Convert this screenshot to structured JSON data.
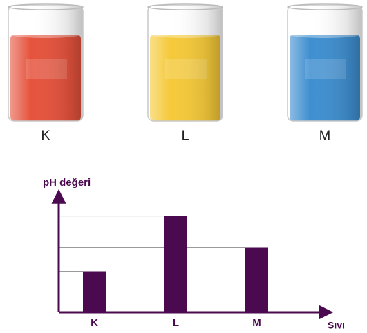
{
  "beakers": [
    {
      "label": "K",
      "color": "#e5533d"
    },
    {
      "label": "L",
      "color": "#f5c93a"
    },
    {
      "label": "M",
      "color": "#3f8fd0"
    }
  ],
  "chart_data": {
    "type": "bar",
    "y_label": "pH değeri",
    "x_label": "Sıvı",
    "categories": [
      "K",
      "L",
      "M"
    ],
    "values": [
      3.5,
      8.2,
      5.5
    ],
    "color": "#4b0a4f",
    "ylim": [
      0,
      10
    ],
    "reference_lines": true
  }
}
